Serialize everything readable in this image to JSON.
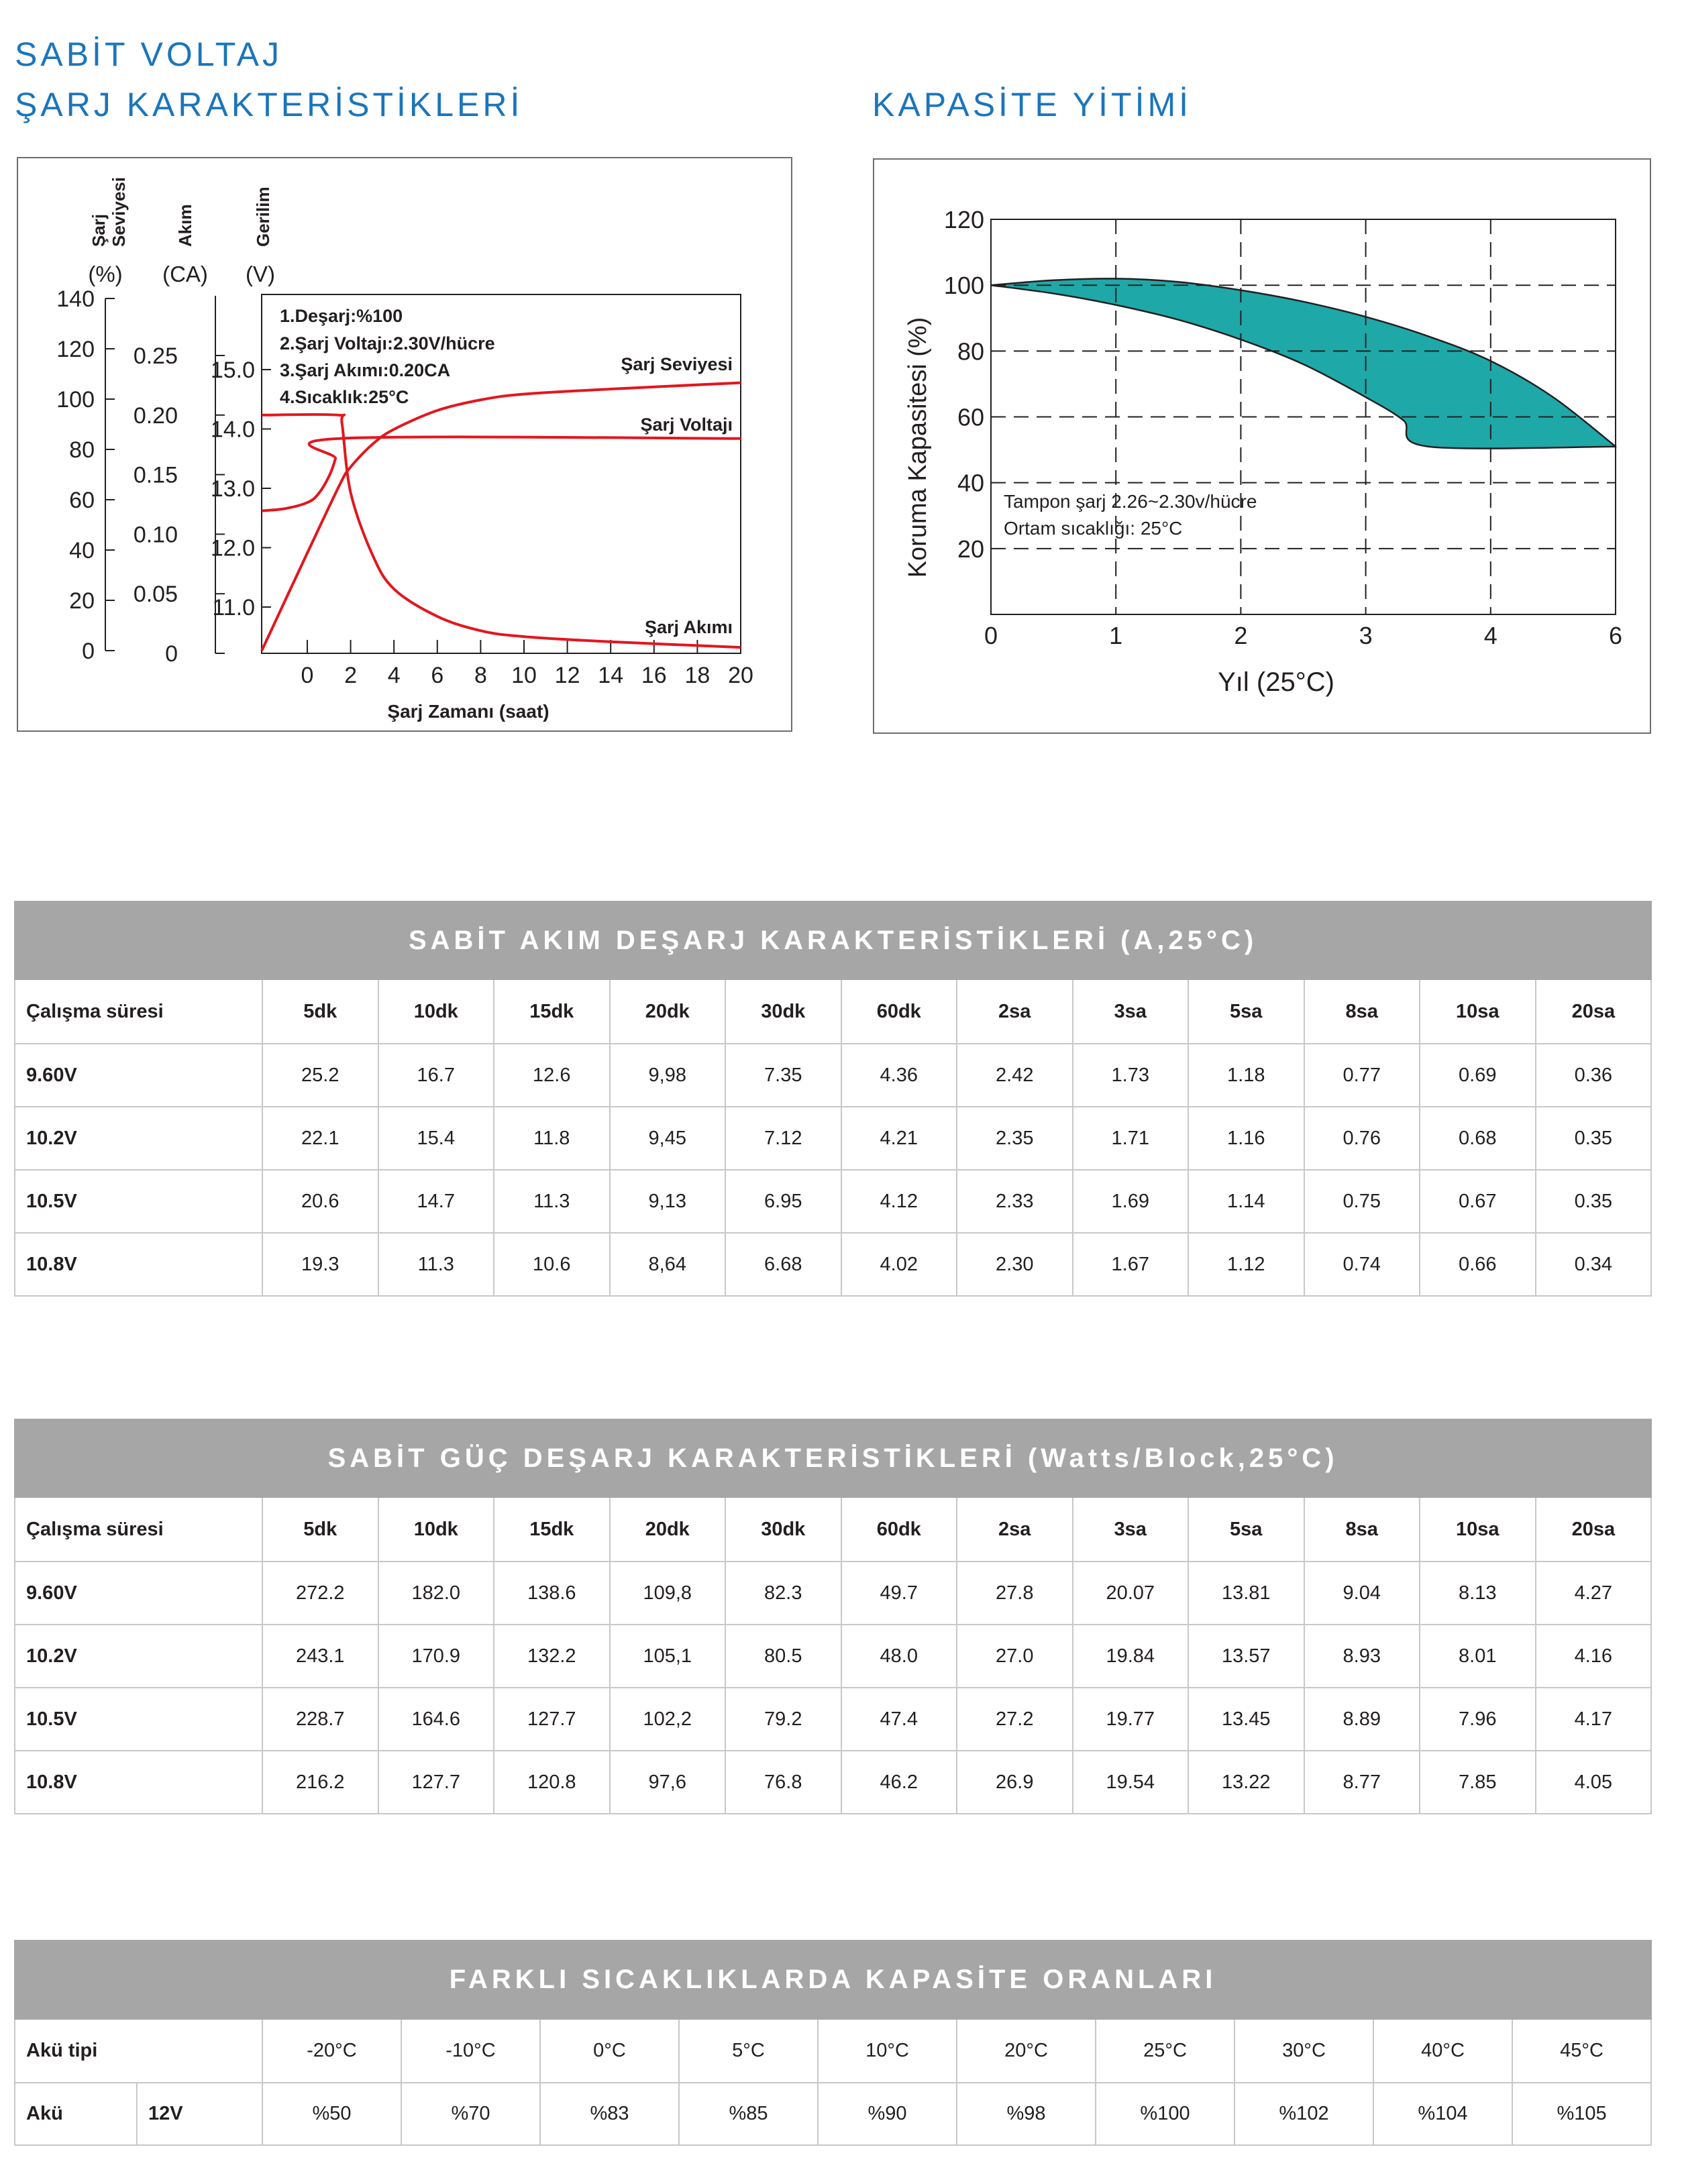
{
  "titles": {
    "charge_line1": "SABİT VOLTAJ",
    "charge_line2": "ŞARJ KARAKTERİSTİKLERİ",
    "capacity": "KAPASİTE YİTİMİ"
  },
  "colors": {
    "title": "#1b75bb",
    "curve": "#e3161e",
    "band": "#1fa8a8",
    "table_header": "#a7a6a7"
  },
  "chart_data": [
    {
      "type": "line",
      "xlabel": "Şarj Zamanı (saat)",
      "xticks": [
        "0",
        "2",
        "4",
        "6",
        "8",
        "10",
        "12",
        "14",
        "16",
        "18",
        "20"
      ],
      "xlim": [
        -2.1,
        20
      ],
      "axes": [
        {
          "name": "Şarj Seviyesi",
          "name_lines": [
            "Şarj",
            "Seviyesi"
          ],
          "unit": "(%)",
          "ticks": [
            "0",
            "20",
            "40",
            "60",
            "80",
            "100",
            "120",
            "140"
          ],
          "ylim": [
            0,
            140
          ]
        },
        {
          "name": "Akım",
          "unit": "(CA)",
          "ticks": [
            "0",
            "0.05",
            "0.10",
            "0.15",
            "0.20",
            "0.25"
          ],
          "ylim": [
            0,
            0.3
          ]
        },
        {
          "name": "Gerilim",
          "unit": "(V)",
          "ticks": [
            "11.0",
            "12.0",
            "13.0",
            "14.0",
            "15.0"
          ],
          "ylim": [
            10.22,
            16.27
          ]
        }
      ],
      "notes": [
        "1.Deşarj:%100",
        "2.Şarj Voltajı:2.30V/hücre",
        "3.Şarj Akımı:0.20CA",
        "4.Sıcaklık:25°C"
      ],
      "series": [
        {
          "name": "Şarj Seviyesi",
          "axis": 0,
          "x": [
            -2.1,
            0,
            1.5,
            2,
            3,
            4,
            6,
            8,
            10,
            14,
            20
          ],
          "y": [
            0,
            38.8,
            66,
            73,
            82,
            88,
            95.5,
            99.7,
            102,
            104,
            106.5
          ]
        },
        {
          "name": "Şarj Voltajı",
          "axis": 2,
          "x": [
            -2.1,
            -1,
            0,
            0.5,
            1,
            1.3,
            1.5,
            20
          ],
          "y": [
            12.62,
            12.66,
            12.76,
            12.9,
            13.2,
            13.5,
            13.84,
            13.84
          ]
        },
        {
          "name": "Şarj Akımı",
          "axis": 1,
          "x": [
            -2.1,
            1.4,
            1.6,
            2,
            3,
            4,
            6,
            8,
            10,
            14,
            20
          ],
          "y": [
            0.2,
            0.2,
            0.193,
            0.135,
            0.083,
            0.054,
            0.031,
            0.019,
            0.014,
            0.0097,
            0.005
          ]
        }
      ]
    },
    {
      "type": "area",
      "xlabel": "Yıl (25°C)",
      "ylabel": "Koruma Kapasitesi (%)",
      "xticks": [
        "0",
        "1",
        "2",
        "3",
        "4",
        "6"
      ],
      "yticks": [
        "20",
        "40",
        "60",
        "80",
        "100",
        "120"
      ],
      "ylim": [
        0,
        120
      ],
      "grid": "dashed",
      "notes": [
        "Tampon şarj 2.26~2.30v/hücre",
        "Ortam sıcaklığı: 25°C"
      ],
      "upper": {
        "x": [
          0,
          0.5,
          1,
          1.5,
          2,
          2.5,
          3,
          3.5,
          4,
          5,
          6
        ],
        "y": [
          100,
          101.5,
          102,
          101,
          98.5,
          95,
          90.4,
          84.5,
          77,
          66,
          51
        ]
      },
      "lower": {
        "x": [
          0,
          0.5,
          1,
          1.5,
          2,
          2.5,
          3,
          3.3,
          3.5,
          6
        ],
        "y": [
          100,
          97.5,
          94,
          89.5,
          83.5,
          76,
          66,
          59,
          51,
          51
        ]
      }
    }
  ],
  "tables": [
    {
      "title": "SABİT AKIM DEŞARJ KARAKTERİSTİKLERİ (A,25°C)",
      "header": [
        "Çalışma süresi",
        "5dk",
        "10dk",
        "15dk",
        "20dk",
        "30dk",
        "60dk",
        "2sa",
        "3sa",
        "5sa",
        "8sa",
        "10sa",
        "20sa"
      ],
      "rows": [
        [
          "9.60V",
          "25.2",
          "16.7",
          "12.6",
          "9,98",
          "7.35",
          "4.36",
          "2.42",
          "1.73",
          "1.18",
          "0.77",
          "0.69",
          "0.36"
        ],
        [
          "10.2V",
          "22.1",
          "15.4",
          "11.8",
          "9,45",
          "7.12",
          "4.21",
          "2.35",
          "1.71",
          "1.16",
          "0.76",
          "0.68",
          "0.35"
        ],
        [
          "10.5V",
          "20.6",
          "14.7",
          "11.3",
          "9,13",
          "6.95",
          "4.12",
          "2.33",
          "1.69",
          "1.14",
          "0.75",
          "0.67",
          "0.35"
        ],
        [
          "10.8V",
          "19.3",
          "11.3",
          "10.6",
          "8,64",
          "6.68",
          "4.02",
          "2.30",
          "1.67",
          "1.12",
          "0.74",
          "0.66",
          "0.34"
        ]
      ]
    },
    {
      "title": "SABİT GÜÇ DEŞARJ KARAKTERİSTİKLERİ (Watts/Block,25°C)",
      "header": [
        "Çalışma süresi",
        "5dk",
        "10dk",
        "15dk",
        "20dk",
        "30dk",
        "60dk",
        "2sa",
        "3sa",
        "5sa",
        "8sa",
        "10sa",
        "20sa"
      ],
      "rows": [
        [
          "9.60V",
          "272.2",
          "182.0",
          "138.6",
          "109,8",
          "82.3",
          "49.7",
          "27.8",
          "20.07",
          "13.81",
          "9.04",
          "8.13",
          "4.27"
        ],
        [
          "10.2V",
          "243.1",
          "170.9",
          "132.2",
          "105,1",
          "80.5",
          "48.0",
          "27.0",
          "19.84",
          "13.57",
          "8.93",
          "8.01",
          "4.16"
        ],
        [
          "10.5V",
          "228.7",
          "164.6",
          "127.7",
          "102,2",
          "79.2",
          "47.4",
          "27.2",
          "19.77",
          "13.45",
          "8.89",
          "7.96",
          "4.17"
        ],
        [
          "10.8V",
          "216.2",
          "127.7",
          "120.8",
          "97,6",
          "76.8",
          "46.2",
          "26.9",
          "19.54",
          "13.22",
          "8.77",
          "7.85",
          "4.05"
        ]
      ]
    }
  ],
  "temp_table": {
    "title": "FARKLI SICAKLIKLARDA KAPASİTE ORANLARI",
    "type_label": "Akü tipi",
    "temps": [
      "-20°C",
      "-10°C",
      "0°C",
      "5°C",
      "10°C",
      "20°C",
      "25°C",
      "30°C",
      "40°C",
      "45°C"
    ],
    "row_label": "Akü",
    "row_voltage": "12V",
    "values": [
      "%50",
      "%70",
      "%83",
      "%85",
      "%90",
      "%98",
      "%100",
      "%102",
      "%104",
      "%105"
    ]
  }
}
